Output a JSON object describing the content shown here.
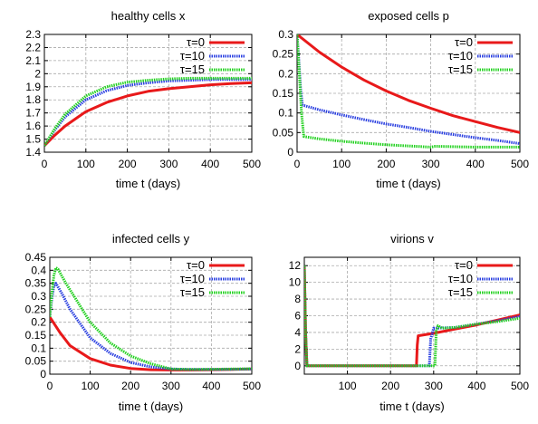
{
  "chart_data": [
    {
      "type": "line",
      "title": "healthy cells  x",
      "xlabel": "time  t  (days)",
      "ylabel": "",
      "xlim": [
        0,
        500
      ],
      "ylim": [
        1.4,
        2.3
      ],
      "xticks": [
        "0",
        "100",
        "200",
        "300",
        "400",
        "500"
      ],
      "yticks": [
        "1.4",
        "1.5",
        "1.6",
        "1.7",
        "1.8",
        "1.9",
        "2",
        "2.1",
        "2.2",
        "2.3"
      ],
      "grid": true,
      "legend": "top-right",
      "series": [
        {
          "name": "τ=0",
          "color": "#e8191a",
          "dash": "solid",
          "x": [
            0,
            25,
            50,
            100,
            150,
            200,
            250,
            300,
            350,
            400,
            450,
            500
          ],
          "y": [
            1.45,
            1.53,
            1.6,
            1.71,
            1.78,
            1.83,
            1.865,
            1.885,
            1.9,
            1.915,
            1.925,
            1.93
          ]
        },
        {
          "name": "τ=10",
          "color": "#2a3fe0",
          "dash": "dotted",
          "x": [
            0,
            25,
            50,
            100,
            150,
            200,
            250,
            300,
            350,
            400,
            450,
            500
          ],
          "y": [
            1.45,
            1.57,
            1.67,
            1.8,
            1.87,
            1.91,
            1.93,
            1.945,
            1.95,
            1.955,
            1.955,
            1.955
          ]
        },
        {
          "name": "τ=15",
          "color": "#22d11f",
          "dash": "dotted",
          "x": [
            0,
            25,
            50,
            100,
            150,
            200,
            250,
            300,
            350,
            400,
            450,
            500
          ],
          "y": [
            1.45,
            1.58,
            1.69,
            1.83,
            1.9,
            1.935,
            1.95,
            1.96,
            1.965,
            1.965,
            1.965,
            1.965
          ]
        }
      ]
    },
    {
      "type": "line",
      "title": "exposed cells  p",
      "xlabel": "time  t  (days)",
      "ylabel": "",
      "xlim": [
        0,
        500
      ],
      "ylim": [
        0,
        0.3
      ],
      "xticks": [
        "0",
        "100",
        "200",
        "300",
        "400",
        "500"
      ],
      "yticks": [
        "0",
        "0.05",
        "0.1",
        "0.15",
        "0.2",
        "0.25",
        "0.3"
      ],
      "grid": true,
      "legend": "top-right",
      "series": [
        {
          "name": "τ=0",
          "color": "#e8191a",
          "dash": "solid",
          "x": [
            0,
            50,
            100,
            150,
            200,
            250,
            300,
            350,
            400,
            450,
            500
          ],
          "y": [
            0.3,
            0.255,
            0.217,
            0.184,
            0.156,
            0.132,
            0.112,
            0.093,
            0.078,
            0.063,
            0.05
          ]
        },
        {
          "name": "τ=10",
          "color": "#2a3fe0",
          "dash": "dotted",
          "x": [
            0,
            4,
            8,
            12,
            50,
            100,
            150,
            200,
            250,
            300,
            350,
            400,
            450,
            500
          ],
          "y": [
            0.3,
            0.23,
            0.16,
            0.12,
            0.108,
            0.095,
            0.083,
            0.072,
            0.063,
            0.053,
            0.045,
            0.037,
            0.03,
            0.022
          ]
        },
        {
          "name": "τ=15",
          "color": "#22d11f",
          "dash": "dotted",
          "x": [
            0,
            5,
            10,
            15,
            50,
            100,
            150,
            200,
            250,
            300,
            310,
            350,
            400,
            450,
            500
          ],
          "y": [
            0.3,
            0.2,
            0.1,
            0.04,
            0.034,
            0.028,
            0.023,
            0.019,
            0.016,
            0.013,
            0.015,
            0.014,
            0.013,
            0.013,
            0.013
          ]
        }
      ]
    },
    {
      "type": "line",
      "title": "infected cells  y",
      "xlabel": "time  t  (days)",
      "ylabel": "",
      "xlim": [
        0,
        500
      ],
      "ylim": [
        0,
        0.45
      ],
      "xticks": [
        "0",
        "100",
        "200",
        "300",
        "400",
        "500"
      ],
      "yticks": [
        "0",
        "0.05",
        "0.1",
        "0.15",
        "0.2",
        "0.25",
        "0.3",
        "0.35",
        "0.4",
        "0.45"
      ],
      "grid": true,
      "legend": "top-right",
      "series": [
        {
          "name": "τ=0",
          "color": "#e8191a",
          "dash": "solid",
          "x": [
            0,
            25,
            50,
            100,
            150,
            200,
            250,
            300,
            350,
            400,
            450,
            500
          ],
          "y": [
            0.22,
            0.16,
            0.11,
            0.06,
            0.035,
            0.022,
            0.017,
            0.016,
            0.016,
            0.017,
            0.018,
            0.02
          ]
        },
        {
          "name": "τ=10",
          "color": "#2a3fe0",
          "dash": "dotted",
          "x": [
            0,
            5,
            10,
            15,
            30,
            50,
            100,
            150,
            200,
            250,
            300,
            350,
            400,
            450,
            500
          ],
          "y": [
            0.22,
            0.29,
            0.34,
            0.35,
            0.31,
            0.25,
            0.14,
            0.08,
            0.045,
            0.028,
            0.02,
            0.018,
            0.018,
            0.019,
            0.02
          ]
        },
        {
          "name": "τ=15",
          "color": "#22d11f",
          "dash": "dotted",
          "x": [
            0,
            5,
            10,
            15,
            20,
            40,
            60,
            100,
            150,
            200,
            250,
            300,
            350,
            400,
            450,
            500
          ],
          "y": [
            0.22,
            0.31,
            0.38,
            0.41,
            0.405,
            0.35,
            0.3,
            0.2,
            0.12,
            0.07,
            0.04,
            0.02,
            0.018,
            0.019,
            0.02,
            0.021
          ]
        }
      ]
    },
    {
      "type": "line",
      "title": "virions  v",
      "xlabel": "time  t  (days)",
      "ylabel": "",
      "xlim": [
        0,
        500
      ],
      "ylim": [
        -1,
        13
      ],
      "xticks": [
        "",
        "100",
        "200",
        "300",
        "400",
        "500"
      ],
      "yticks": [
        "0",
        "2",
        "4",
        "6",
        "8",
        "10",
        "12"
      ],
      "grid": true,
      "legend": "top-right",
      "series": [
        {
          "name": "τ=0",
          "color": "#e8191a",
          "dash": "solid",
          "x": [
            0,
            3,
            6,
            260,
            262,
            264,
            300,
            350,
            400,
            450,
            500
          ],
          "y": [
            12,
            4,
            0,
            0,
            2.5,
            3.6,
            3.9,
            4.4,
            4.9,
            5.5,
            6.1
          ]
        },
        {
          "name": "τ=10",
          "color": "#2a3fe0",
          "dash": "dotted",
          "x": [
            0,
            3,
            6,
            290,
            293,
            300,
            350,
            400,
            450,
            500
          ],
          "y": [
            12,
            4,
            0,
            0,
            3.2,
            4.5,
            4.6,
            5.0,
            5.4,
            5.9
          ]
        },
        {
          "name": "τ=15",
          "color": "#22d11f",
          "dash": "dotted",
          "x": [
            0,
            3,
            6,
            303,
            306,
            310,
            320,
            350,
            400,
            450,
            500
          ],
          "y": [
            12,
            4,
            0,
            0,
            4.2,
            4.8,
            4.5,
            4.6,
            5.0,
            5.3,
            5.7
          ]
        }
      ]
    }
  ]
}
